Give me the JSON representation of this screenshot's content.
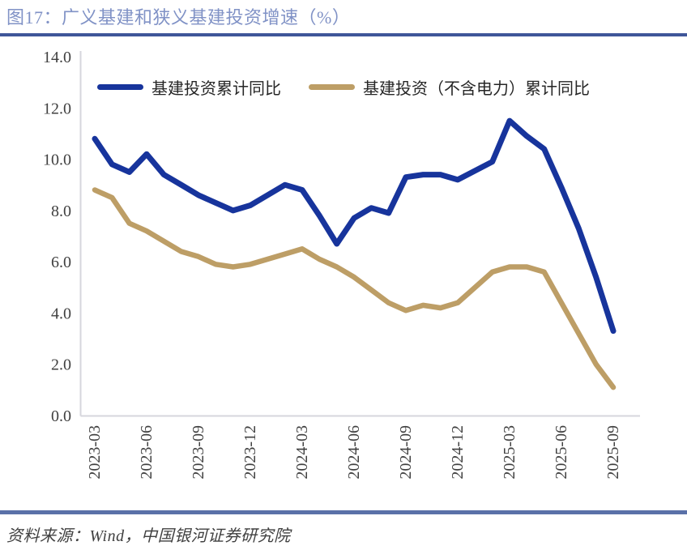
{
  "figure": {
    "title": "图17：广义基建和狭义基建投资增速（%）",
    "source_note": "资料来源：Wind，中国银河证券研究院"
  },
  "colors": {
    "title_text": "#8092c6",
    "top_rule": "#3f5699",
    "bottom_rule": "#5a71a8",
    "axis_line": "#d6d6dc",
    "tick_text": "#404040",
    "legend_text": "#262626",
    "series_broad": "#17349c",
    "series_narrow": "#bd9e66"
  },
  "chart_data": {
    "type": "line",
    "title": "图17：广义基建和狭义基建投资增速（%）",
    "xlabel": "",
    "ylabel": "",
    "ylim": [
      0.0,
      14.0
    ],
    "grid": false,
    "legend_position": "top",
    "x": [
      "2023-03",
      "2023-04",
      "2023-05",
      "2023-06",
      "2023-07",
      "2023-08",
      "2023-09",
      "2023-10",
      "2023-11",
      "2023-12",
      "2024-02",
      "2024-03",
      "2024-04",
      "2024-05",
      "2024-06",
      "2024-07",
      "2024-08",
      "2024-09",
      "2024-10",
      "2024-11",
      "2024-12",
      "2025-02",
      "2025-03",
      "2025-04",
      "2025-05",
      "2025-06",
      "2025-07",
      "2025-08",
      "2025-09"
    ],
    "x_tick_labels": [
      "2023-03",
      "2023-06",
      "2023-09",
      "2023-12",
      "2024-03",
      "2024-06",
      "2024-09",
      "2024-12",
      "2025-03",
      "2025-06",
      "2025-09"
    ],
    "y_ticks": [
      0,
      2,
      4,
      6,
      8,
      10,
      12,
      14
    ],
    "y_tick_labels": [
      "0.0",
      "2.0",
      "4.0",
      "6.0",
      "8.0",
      "10.0",
      "12.0",
      "14.0"
    ],
    "series": [
      {
        "name": "基建投资累计同比",
        "color": "#17349c",
        "values": [
          10.8,
          9.8,
          9.5,
          10.2,
          9.4,
          9.0,
          8.6,
          8.3,
          8.0,
          8.2,
          9.0,
          8.8,
          7.8,
          6.7,
          7.7,
          8.1,
          7.9,
          9.3,
          9.4,
          9.4,
          9.2,
          9.9,
          11.5,
          10.9,
          10.4,
          8.9,
          7.3,
          5.4,
          3.3
        ]
      },
      {
        "name": "基建投资（不含电力）累计同比",
        "color": "#bd9e66",
        "values": [
          8.8,
          8.5,
          7.5,
          7.2,
          6.8,
          6.4,
          6.2,
          5.9,
          5.8,
          5.9,
          6.3,
          6.5,
          6.1,
          5.8,
          5.4,
          4.9,
          4.4,
          4.1,
          4.3,
          4.2,
          4.4,
          5.6,
          5.8,
          5.8,
          5.6,
          4.4,
          3.2,
          2.0,
          1.1
        ]
      }
    ]
  }
}
